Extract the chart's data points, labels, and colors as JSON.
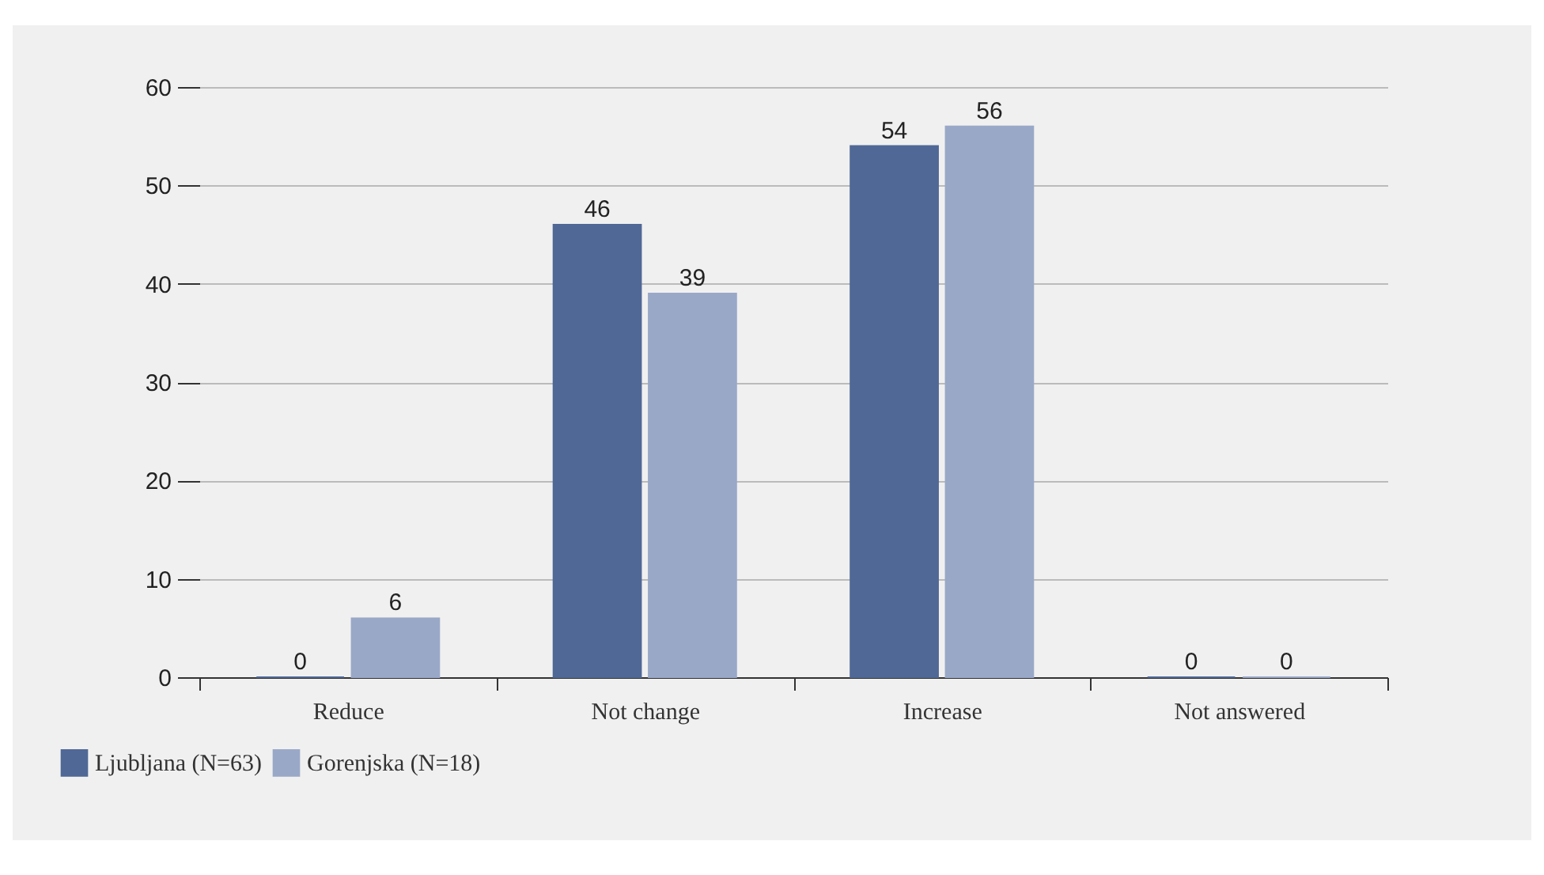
{
  "chart_data": {
    "type": "bar",
    "categories": [
      "Reduce",
      "Not change",
      "Increase",
      "Not answered"
    ],
    "series": [
      {
        "name": "Ljubljana (N=63)",
        "color": "#506896",
        "values": [
          0,
          46,
          54,
          0
        ]
      },
      {
        "name": "Gorenjska (N=18)",
        "color": "#9aa8c8",
        "values": [
          6,
          39,
          56,
          0
        ]
      }
    ],
    "ylim": [
      0,
      60
    ],
    "yticks": [
      0,
      10,
      20,
      30,
      40,
      50,
      60
    ],
    "grid": "y",
    "legend": "bottom left",
    "data_labels": true
  }
}
